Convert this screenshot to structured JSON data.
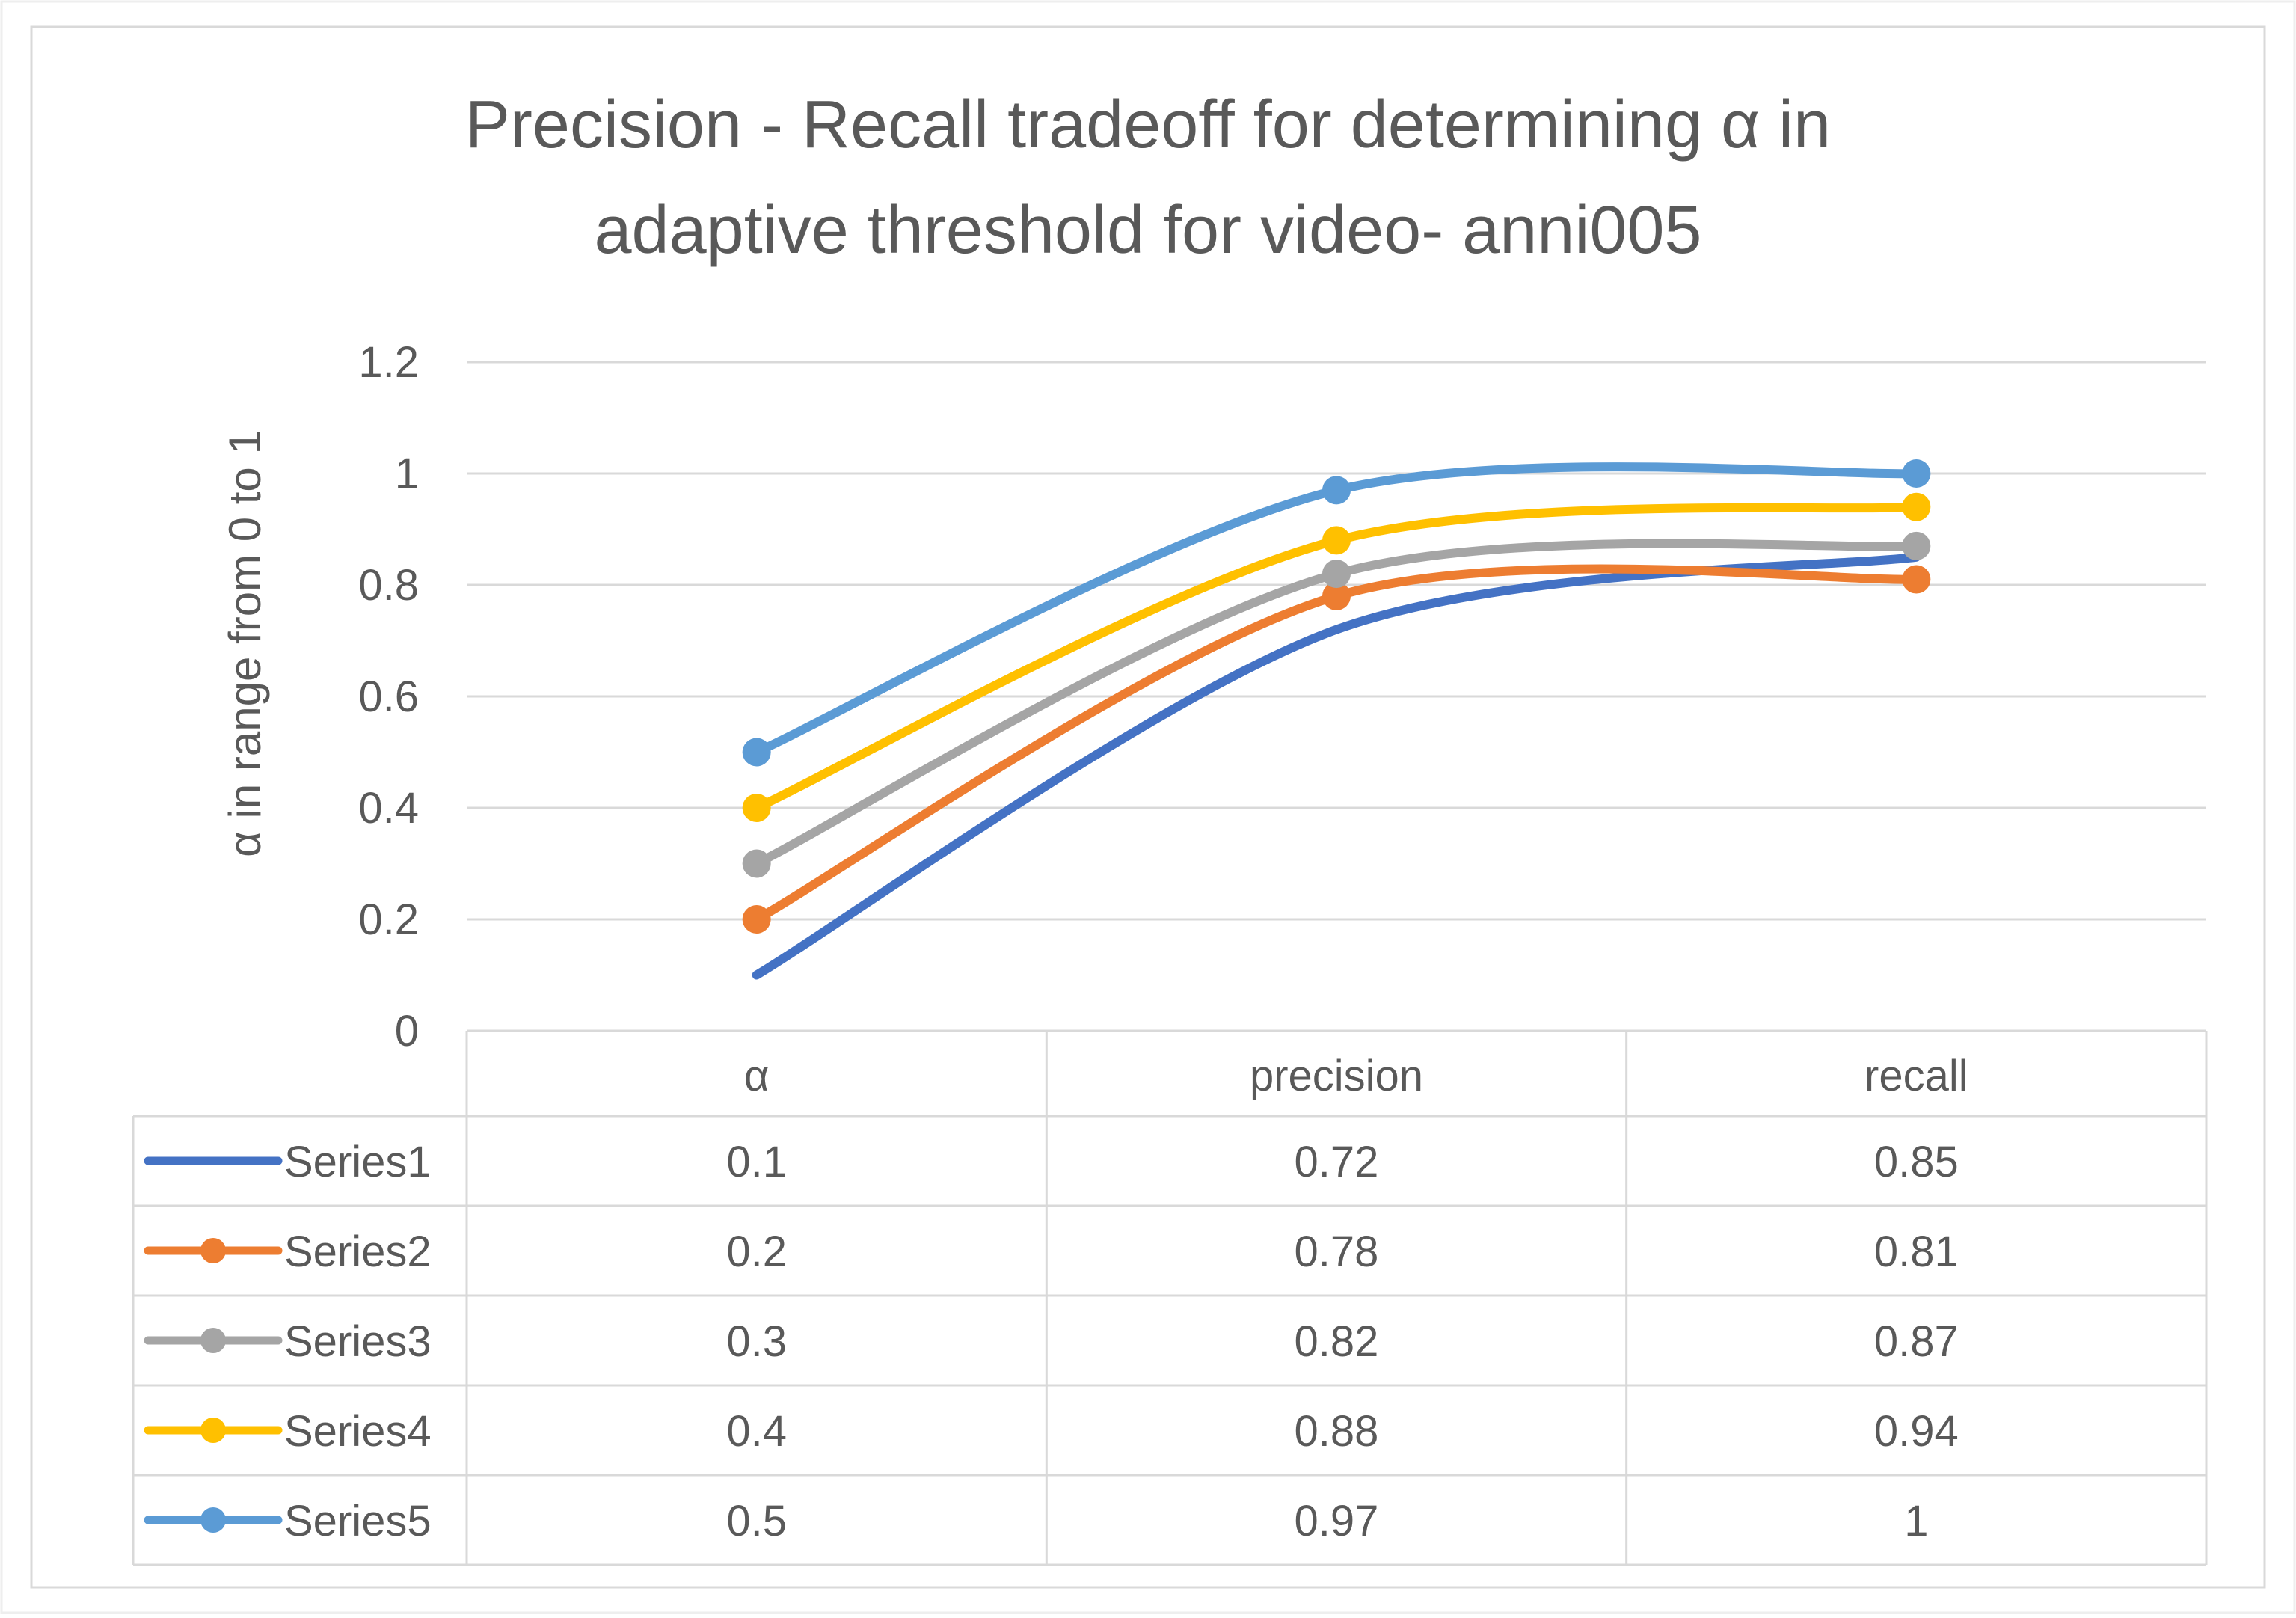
{
  "chart_data": {
    "type": "line",
    "title_lines": [
      "Precision - Recall tradeoff for determining α in",
      "adaptive threshold for video- anni005"
    ],
    "ylabel": "α in range from 0 to 1",
    "xlabel": "",
    "ylim": [
      0,
      1.2
    ],
    "yticks": [
      "0",
      "0.2",
      "0.4",
      "0.6",
      "0.8",
      "1",
      "1.2"
    ],
    "categories": [
      "α",
      "precision",
      "recall"
    ],
    "grid": true,
    "legend": "data-table",
    "series": [
      {
        "name": "Series1",
        "values": [
          0.1,
          0.72,
          0.85
        ],
        "labels": [
          "0.1",
          "0.72",
          "0.85"
        ],
        "color": "#4472C4",
        "markers": false
      },
      {
        "name": "Series2",
        "values": [
          0.2,
          0.78,
          0.81
        ],
        "labels": [
          "0.2",
          "0.78",
          "0.81"
        ],
        "color": "#ED7D31",
        "markers": true
      },
      {
        "name": "Series3",
        "values": [
          0.3,
          0.82,
          0.87
        ],
        "labels": [
          "0.3",
          "0.82",
          "0.87"
        ],
        "color": "#A5A5A5",
        "markers": true
      },
      {
        "name": "Series4",
        "values": [
          0.4,
          0.88,
          0.94
        ],
        "labels": [
          "0.4",
          "0.88",
          "0.94"
        ],
        "color": "#FFC000",
        "markers": true
      },
      {
        "name": "Series5",
        "values": [
          0.5,
          0.97,
          1
        ],
        "labels": [
          "0.5",
          "0.97",
          "1"
        ],
        "color": "#5B9BD5",
        "markers": true
      }
    ]
  }
}
